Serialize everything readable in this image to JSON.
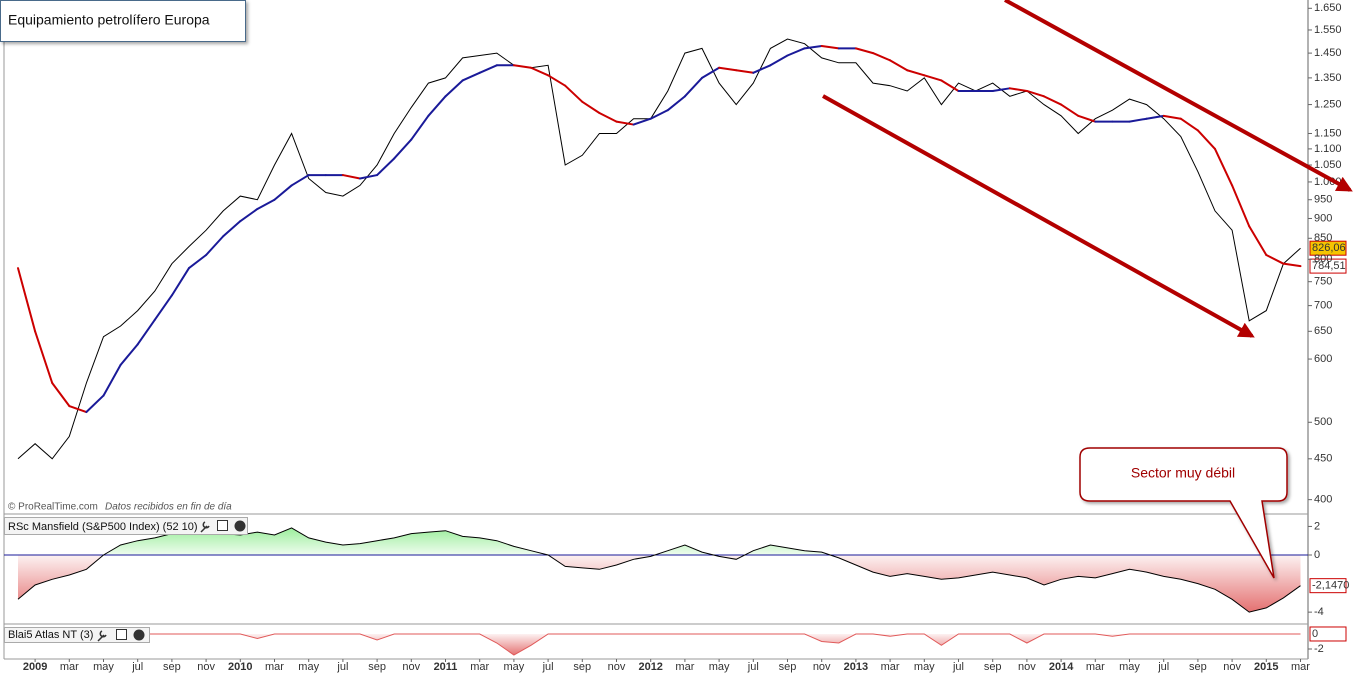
{
  "chart_data": [
    {
      "type": "line",
      "title": "Equipamiento petrolífero Europa",
      "log_scale": true,
      "annotations": [
        "© ProRealTime.com",
        "Datos recibidos en fin de día",
        "Sector muy débil"
      ],
      "categories": [
        null,
        "2009",
        null,
        "mar",
        null,
        "may",
        null,
        "jul",
        null,
        "sep",
        null,
        "nov",
        null,
        "2010",
        null,
        "mar",
        null,
        "may",
        null,
        "jul",
        null,
        "sep",
        null,
        "nov",
        null,
        "2011",
        null,
        "mar",
        null,
        "may",
        null,
        "jul",
        null,
        "sep",
        null,
        "nov",
        null,
        "2012",
        null,
        "mar",
        null,
        "may",
        null,
        "jul",
        null,
        "sep",
        null,
        "nov",
        null,
        "2013",
        null,
        "mar",
        null,
        "may",
        null,
        "jul",
        null,
        "sep",
        null,
        "nov",
        null,
        "2014",
        null,
        "mar",
        null,
        "may",
        null,
        "jul",
        null,
        "sep",
        null,
        "nov",
        null,
        "2015",
        null,
        "mar"
      ],
      "series": [
        {
          "color": "#000000",
          "last_label": "826,06",
          "label_color": "#f5c400",
          "values": [
            450,
            470,
            450,
            480,
            560,
            640,
            660,
            690,
            730,
            790,
            830,
            870,
            920,
            960,
            950,
            1050,
            1150,
            1010,
            970,
            960,
            990,
            1050,
            1150,
            1240,
            1330,
            1350,
            1430,
            1440,
            1450,
            1400,
            1390,
            1400,
            1050,
            1080,
            1150,
            1150,
            1200,
            1200,
            1300,
            1450,
            1470,
            1330,
            1250,
            1330,
            1470,
            1510,
            1490,
            1430,
            1410,
            1410,
            1330,
            1320,
            1300,
            1350,
            1250,
            1330,
            1300,
            1330,
            1280,
            1300,
            1250,
            1210,
            1150,
            1200,
            1230,
            1270,
            1250,
            1200,
            1140,
            1030,
            920,
            870,
            670,
            690,
            790,
            826.06
          ]
        },
        {
          "color": "#cc0000",
          "rising_color": "#1a1a99",
          "last_label": "784,51",
          "values": [
            780,
            650,
            560,
            524,
            515,
            540,
            590,
            626,
            672,
            721,
            780,
            810,
            855,
            893,
            925,
            950,
            990,
            1020,
            1020,
            1020,
            1010,
            1020,
            1070,
            1130,
            1210,
            1280,
            1340,
            1370,
            1400,
            1400,
            1390,
            1360,
            1320,
            1260,
            1220,
            1190,
            1180,
            1200,
            1230,
            1280,
            1350,
            1390,
            1380,
            1370,
            1400,
            1440,
            1470,
            1480,
            1470,
            1470,
            1450,
            1420,
            1380,
            1360,
            1340,
            1300,
            1300,
            1300,
            1310,
            1300,
            1280,
            1250,
            1210,
            1190,
            1190,
            1190,
            1200,
            1210,
            1200,
            1160,
            1100,
            990,
            880,
            810,
            790,
            784.51
          ]
        }
      ],
      "ylim": [
        386,
        1690
      ],
      "yticks": [
        {
          "value": 1650,
          "label": "1.650"
        },
        {
          "value": 1550,
          "label": "1.550"
        },
        {
          "value": 1450,
          "label": "1.450"
        },
        {
          "value": 1350,
          "label": "1.350"
        },
        {
          "value": 1250,
          "label": "1.250"
        },
        {
          "value": 1150,
          "label": "1.150"
        },
        {
          "value": 1100,
          "label": "1.100"
        },
        {
          "value": 1050,
          "label": "1.050"
        },
        {
          "value": 1000,
          "label": "1.000"
        },
        950,
        900,
        850,
        800,
        750,
        700,
        650,
        600,
        500,
        450,
        400
      ]
    },
    {
      "type": "area",
      "title": "RSc Mansfield (S&P500 Index) (52 10)",
      "series": [
        {
          "color": "#000000",
          "positive_color": "#7be87b",
          "negative_color": "#e05a5a",
          "zero_color": "#1a1a99",
          "last_label": "-2,1470",
          "values": [
            -3.1,
            -2.1,
            -1.7,
            -1.4,
            -1.0,
            0,
            0.7,
            1.0,
            1.2,
            1.5,
            1.6,
            1.5,
            1.5,
            1.4,
            1.6,
            1.4,
            1.9,
            1.2,
            0.9,
            0.7,
            0.8,
            1.0,
            1.2,
            1.5,
            1.6,
            1.7,
            1.3,
            1.2,
            1.0,
            0.6,
            0.3,
            0,
            -0.8,
            -0.9,
            -1.0,
            -0.7,
            -0.3,
            -0.1,
            0.3,
            0.7,
            0.2,
            -0.1,
            -0.3,
            0.3,
            0.7,
            0.5,
            0.3,
            0.2,
            -0.2,
            -0.7,
            -1.2,
            -1.5,
            -1.3,
            -1.5,
            -1.7,
            -1.6,
            -1.4,
            -1.2,
            -1.4,
            -1.6,
            -2.1,
            -1.7,
            -1.5,
            -1.6,
            -1.3,
            -1.0,
            -1.2,
            -1.5,
            -1.7,
            -2.0,
            -2.4,
            -3.1,
            -4.0,
            -3.7,
            -3.0,
            -2.147
          ]
        }
      ],
      "ylim": [
        -4.69,
        2.66
      ],
      "yticks": [
        2,
        0,
        -4
      ]
    },
    {
      "type": "area",
      "title": "Blai5 Atlas NT (3)",
      "series": [
        {
          "color": "#e05a5a",
          "negative_color": "#e05a5a",
          "last_label": "0",
          "values": [
            0,
            0,
            0,
            0,
            0,
            0,
            0,
            0,
            0,
            0,
            0,
            0,
            0,
            0,
            -0.6,
            0,
            0,
            0,
            0,
            0,
            0,
            -0.8,
            0,
            0,
            0,
            0,
            0,
            0,
            -1.2,
            -2.8,
            -1.5,
            0,
            0,
            0,
            0,
            0,
            0,
            0,
            0,
            0,
            0,
            0,
            0,
            0,
            0,
            0,
            0,
            -1.0,
            -1.2,
            0,
            0,
            -0.3,
            0,
            0,
            -1.5,
            0,
            0,
            0,
            0,
            -1.2,
            0,
            0,
            0,
            0,
            -0.3,
            0,
            0,
            0,
            0,
            0,
            0,
            0,
            0,
            0,
            0,
            0
          ]
        }
      ],
      "ylim": [
        -3.33,
        0.93
      ],
      "yticks": [
        -2
      ]
    }
  ]
}
